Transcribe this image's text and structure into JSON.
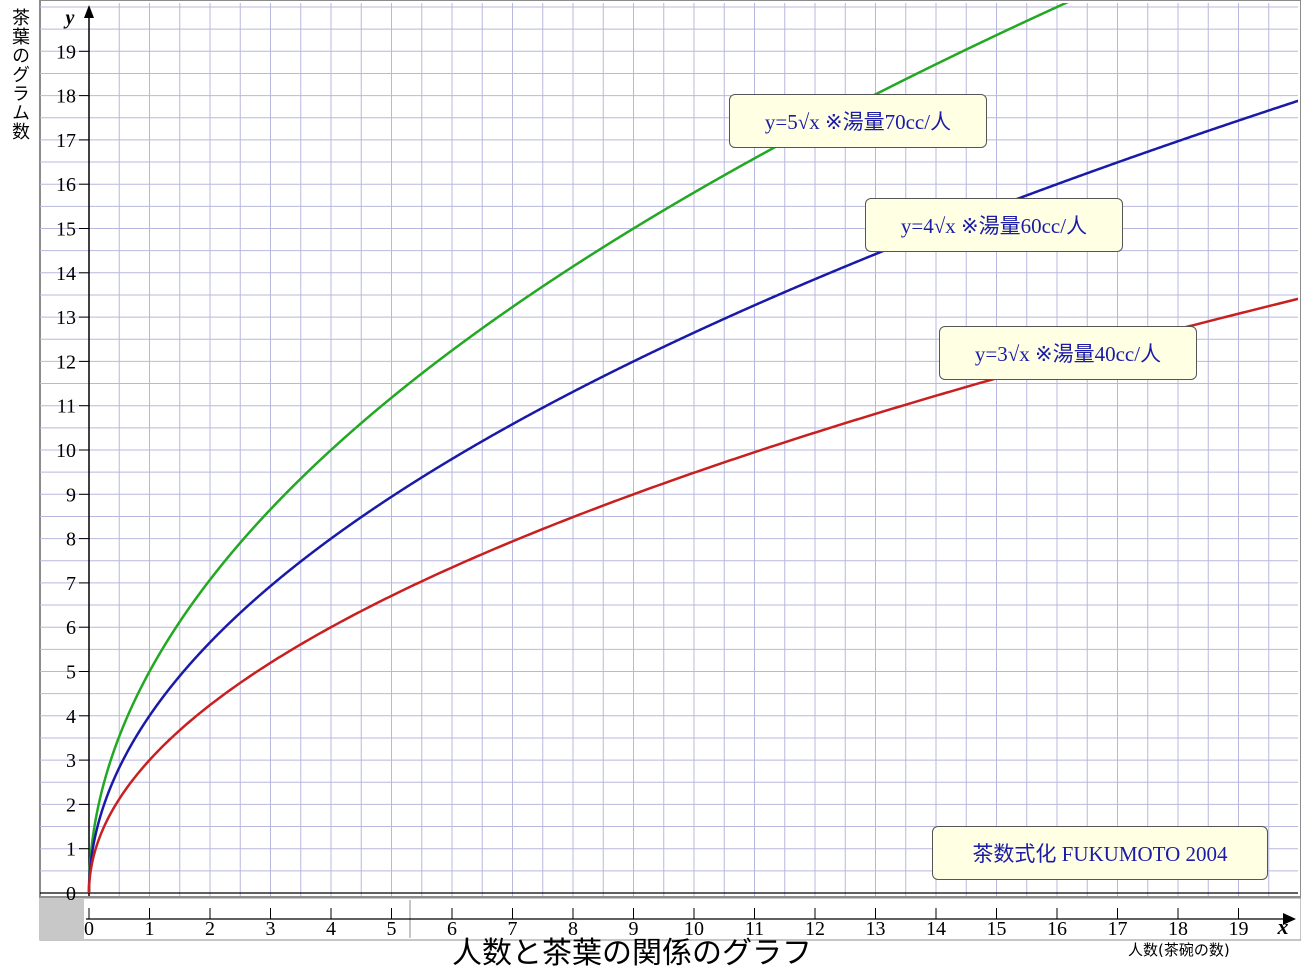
{
  "chart_data": {
    "type": "line",
    "title": "人数と茶葉の関係のグラフ",
    "xlabel": "人数(茶碗の数)",
    "ylabel": "茶葉のグラム数",
    "x_axis_letter": "x",
    "y_axis_letter": "y",
    "xlim": [
      0,
      20
    ],
    "ylim": [
      0,
      20
    ],
    "x_ticks": [
      "0",
      "1",
      "2",
      "3",
      "4",
      "5",
      "6",
      "7",
      "8",
      "9",
      "10",
      "11",
      "12",
      "13",
      "14",
      "15",
      "16",
      "17",
      "18",
      "19"
    ],
    "y_ticks": [
      "0",
      "1",
      "2",
      "3",
      "4",
      "5",
      "6",
      "7",
      "8",
      "9",
      "10",
      "11",
      "12",
      "13",
      "14",
      "15",
      "16",
      "17",
      "18",
      "19"
    ],
    "grid": true,
    "series": [
      {
        "name": "y=5√x ※湯量70cc/人",
        "color": "#22a822",
        "coefficient": 5,
        "x": [
          0,
          0.25,
          0.5,
          1,
          2,
          3,
          4,
          5,
          6,
          7,
          8,
          9,
          10,
          11,
          12,
          13,
          14,
          15,
          16
        ],
        "values": [
          0,
          2.5,
          3.54,
          5,
          7.07,
          8.66,
          10,
          11.18,
          12.25,
          13.23,
          14.14,
          15,
          15.81,
          16.58,
          17.32,
          18.03,
          18.71,
          19.36,
          20
        ]
      },
      {
        "name": "y=4√x ※湯量60cc/人",
        "color": "#1a1aa8",
        "coefficient": 4,
        "x": [
          0,
          0.25,
          0.5,
          1,
          2,
          3,
          4,
          5,
          6,
          7,
          8,
          9,
          10,
          11,
          12,
          13,
          14,
          15,
          16,
          17,
          18,
          19,
          20
        ],
        "values": [
          0,
          2,
          2.83,
          4,
          5.66,
          6.93,
          8,
          8.94,
          9.8,
          10.58,
          11.31,
          12,
          12.65,
          13.27,
          13.86,
          14.42,
          14.97,
          15.49,
          16,
          16.49,
          16.97,
          17.44,
          17.89
        ]
      },
      {
        "name": "y=3√x ※湯量40cc/人",
        "color": "#c82020",
        "coefficient": 3,
        "x": [
          0,
          0.25,
          0.5,
          1,
          2,
          3,
          4,
          5,
          6,
          7,
          8,
          9,
          10,
          11,
          12,
          13,
          14,
          15,
          16,
          17,
          18,
          19,
          20
        ],
        "values": [
          0,
          1.5,
          2.12,
          3,
          4.24,
          5.2,
          6,
          6.71,
          7.35,
          7.94,
          8.49,
          9,
          9.49,
          9.95,
          10.39,
          10.82,
          11.22,
          11.62,
          12,
          12.37,
          12.73,
          13.08,
          13.42
        ]
      }
    ],
    "annotation": "茶数式化  FUKUMOTO  2004"
  }
}
